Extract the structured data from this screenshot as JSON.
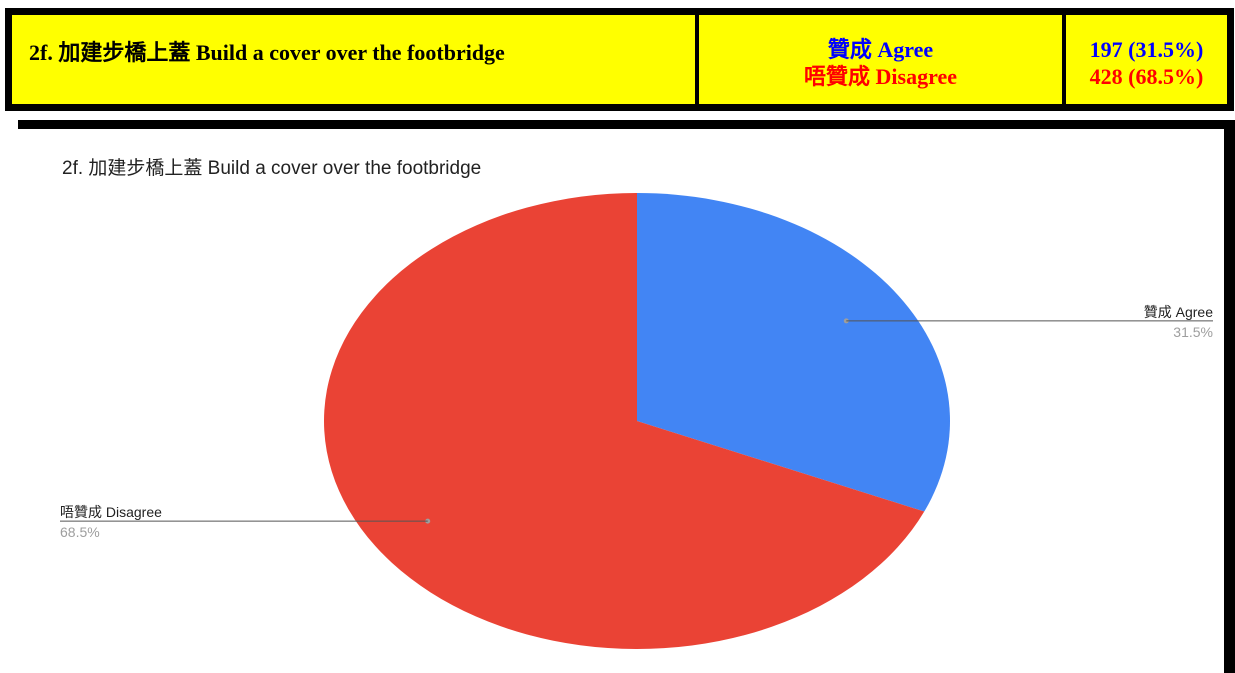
{
  "header": {
    "title": "2f. 加建步橋上蓋 Build a cover over the footbridge",
    "answers": [
      {
        "label": "贊成 Agree",
        "color": "#0000ff"
      },
      {
        "label": "唔贊成 Disagree",
        "color": "#ff0000"
      }
    ],
    "counts": [
      {
        "text": "197 (31.5%)",
        "color": "#0000ff"
      },
      {
        "text": "428 (68.5%)",
        "color": "#ff0000"
      }
    ]
  },
  "chart_data": {
    "type": "pie",
    "title": "2f. 加建步橋上蓋 Build a cover over the footbridge",
    "slices": [
      {
        "label": "贊成 Agree",
        "value": 31.5,
        "percent_label": "31.5%",
        "color": "#4285f4"
      },
      {
        "label": "唔贊成 Disagree",
        "value": 68.5,
        "percent_label": "68.5%",
        "color": "#ea4335"
      }
    ],
    "start_angle": "12 o'clock",
    "direction": "clockwise",
    "legend": "none",
    "labels": "outside with leader lines"
  }
}
